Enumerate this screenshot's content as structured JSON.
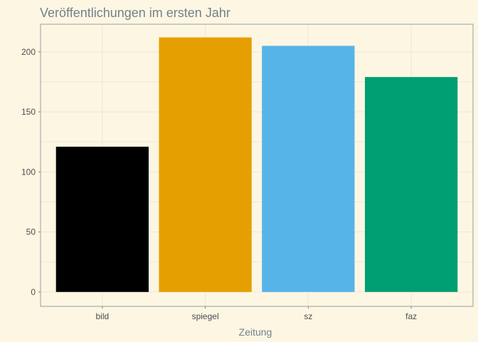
{
  "chart_data": {
    "type": "bar",
    "title": "Veröffentlichungen im ersten Jahr",
    "xlabel": "Zeitung",
    "ylabel": "",
    "categories": [
      "bild",
      "spiegel",
      "sz",
      "faz"
    ],
    "values": [
      121,
      212,
      205,
      179
    ],
    "colors": [
      "#000000",
      "#e69f00",
      "#56b4e9",
      "#009e73"
    ],
    "yticks": [
      0,
      50,
      100,
      150,
      200
    ],
    "ylim": [
      -12,
      223
    ],
    "grid": true,
    "legend": "none"
  },
  "theme": {
    "background": "#fdf6e3",
    "grid_color": "#eee7d4",
    "border_color": "#93a1a1",
    "title_color": "#73828a"
  }
}
